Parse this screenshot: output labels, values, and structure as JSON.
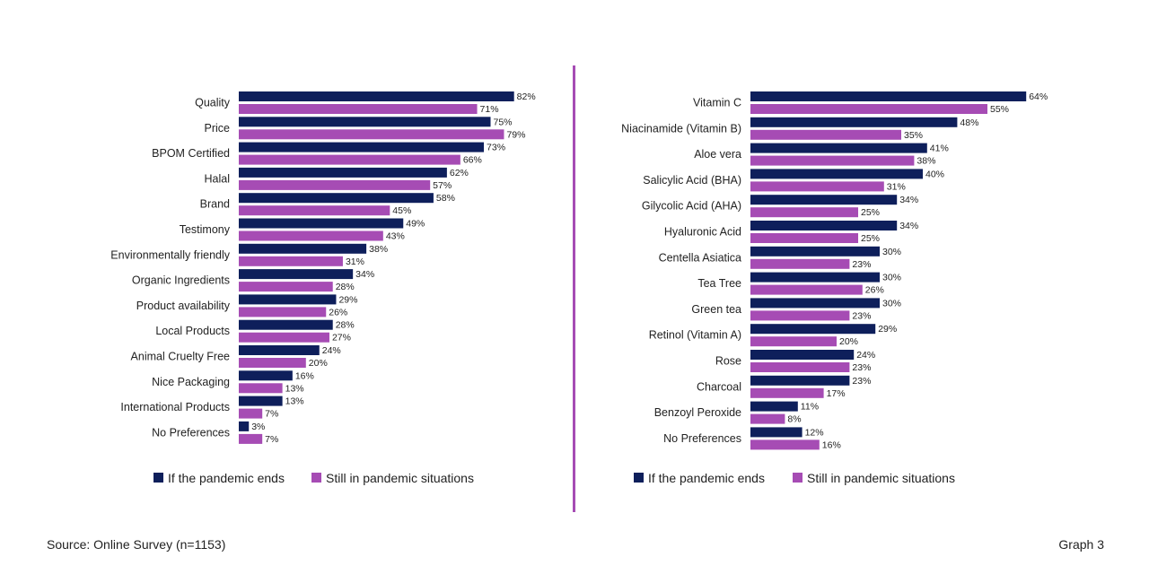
{
  "chart_data": [
    {
      "type": "bar",
      "orientation": "horizontal",
      "categories": [
        "Quality",
        "Price",
        "BPOM Certified",
        "Halal",
        "Brand",
        "Testimony",
        "Environmentally friendly",
        "Organic Ingredients",
        "Product availability",
        "Local Products",
        "Animal Cruelty Free",
        "Nice Packaging",
        "International Products",
        "No Preferences"
      ],
      "series": [
        {
          "name": "If the pandemic ends",
          "color": "#0e1f5b",
          "values": [
            82,
            75,
            73,
            62,
            58,
            49,
            38,
            34,
            29,
            28,
            24,
            16,
            13,
            3
          ]
        },
        {
          "name": "Still in pandemic situations",
          "color": "#a64cb4",
          "values": [
            71,
            79,
            66,
            57,
            45,
            43,
            31,
            28,
            26,
            27,
            20,
            13,
            7,
            7
          ]
        }
      ],
      "value_suffix": "%",
      "legend": "bottom"
    },
    {
      "type": "bar",
      "orientation": "horizontal",
      "categories": [
        "Vitamin C",
        "Niacinamide (Vitamin B)",
        "Aloe vera",
        "Salicylic Acid (BHA)",
        "Gilycolic Acid (AHA)",
        "Hyaluronic Acid",
        "Centella Asiatica",
        "Tea Tree",
        "Green tea",
        "Retinol (Vitamin A)",
        "Rose",
        "Charcoal",
        "Benzoyl Peroxide",
        "No Preferences"
      ],
      "series": [
        {
          "name": "If the pandemic ends",
          "color": "#0e1f5b",
          "values": [
            64,
            48,
            41,
            40,
            34,
            34,
            30,
            30,
            30,
            29,
            24,
            23,
            11,
            12
          ]
        },
        {
          "name": "Still in pandemic situations",
          "color": "#a64cb4",
          "values": [
            55,
            35,
            38,
            31,
            25,
            25,
            23,
            26,
            23,
            20,
            23,
            17,
            8,
            16
          ]
        }
      ],
      "value_suffix": "%",
      "legend": "bottom"
    }
  ],
  "divider_color": "#a64cb4",
  "footer": {
    "source": "Source: Online Survey (n=1153)",
    "graph_label": "Graph 3"
  }
}
